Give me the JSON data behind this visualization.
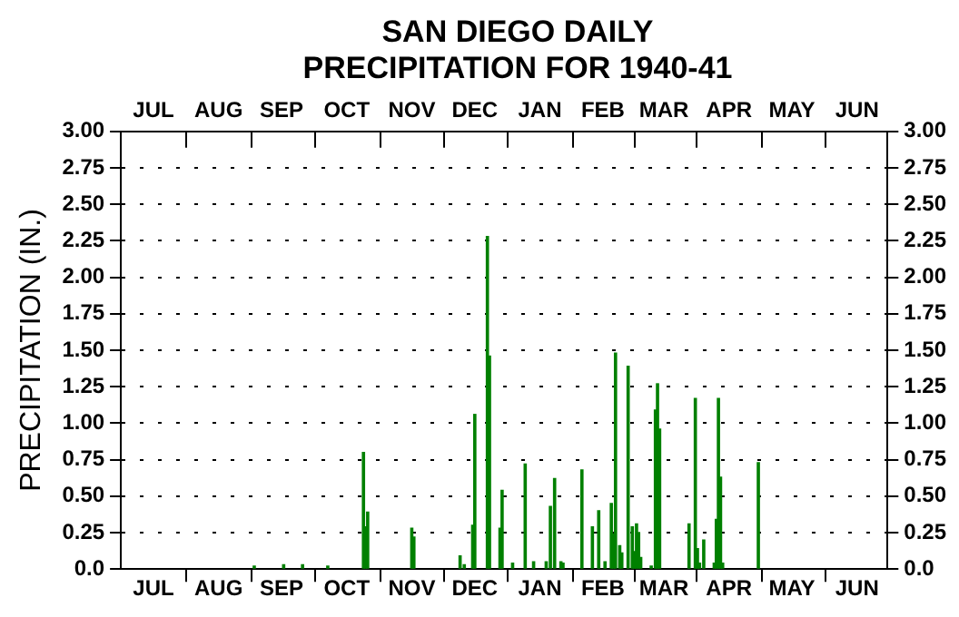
{
  "chart_data": {
    "type": "bar",
    "title": "SAN DIEGO DAILY PRECIPITATION FOR 1940-41",
    "ylabel": "PRECIPITATION (IN.)",
    "categories": [
      null,
      null,
      null,
      null,
      null,
      null,
      null,
      null,
      null,
      null,
      null,
      null,
      null,
      null,
      null,
      "JUL",
      null,
      null,
      null,
      null,
      null,
      null,
      null,
      null,
      null,
      null,
      null,
      null,
      null,
      null,
      null,
      null,
      null,
      null,
      null,
      null,
      null,
      null,
      null,
      null,
      null,
      null,
      null,
      null,
      null,
      null,
      "AUG",
      null,
      null,
      null,
      null,
      null,
      null,
      null,
      null,
      null,
      null,
      null,
      null,
      null,
      null,
      null,
      null,
      null,
      null,
      null,
      null,
      null,
      null,
      null,
      null,
      null,
      null,
      null,
      null,
      null,
      "SEP",
      null,
      null,
      null,
      null,
      null,
      null,
      null,
      null,
      null,
      null,
      null,
      null,
      null,
      null,
      null,
      null,
      null,
      null,
      null,
      null,
      null,
      null,
      null,
      null,
      null,
      null,
      null,
      null,
      null,
      null,
      "OCT",
      null,
      null,
      null,
      null,
      null,
      null,
      null,
      null,
      null,
      null,
      null,
      null,
      null,
      null,
      null,
      null,
      null,
      null,
      null,
      null,
      null,
      null,
      null,
      null,
      null,
      null,
      null,
      null,
      null,
      null,
      "NOV",
      null,
      null,
      null,
      null,
      null,
      null,
      null,
      null,
      null,
      null,
      null,
      null,
      null,
      null,
      null,
      null,
      null,
      null,
      null,
      null,
      null,
      null,
      null,
      null,
      null,
      null,
      null,
      null,
      null,
      "DEC",
      null,
      null,
      null,
      null,
      null,
      null,
      null,
      null,
      null,
      null,
      null,
      null,
      null,
      null,
      null,
      null,
      null,
      null,
      null,
      null,
      null,
      null,
      null,
      null,
      null,
      null,
      null,
      null,
      null,
      null,
      "JAN",
      null,
      null,
      null,
      null,
      null,
      null,
      null,
      null,
      null,
      null,
      null,
      null,
      null,
      null,
      null,
      null,
      null,
      null,
      null,
      null,
      null,
      null,
      null,
      null,
      null,
      null,
      null,
      null,
      null,
      "FEB",
      null,
      null,
      null,
      null,
      null,
      null,
      null,
      null,
      null,
      null,
      null,
      null,
      null,
      null,
      null,
      null,
      null,
      null,
      null,
      null,
      null,
      null,
      null,
      null,
      null,
      null,
      null,
      null,
      "MAR",
      null,
      null,
      null,
      null,
      null,
      null,
      null,
      null,
      null,
      null,
      null,
      null,
      null,
      null,
      null,
      null,
      null,
      null,
      null,
      null,
      null,
      null,
      null,
      null,
      null,
      null,
      null,
      null,
      null,
      null,
      "APR",
      null,
      null,
      null,
      null,
      null,
      null,
      null,
      null,
      null,
      null,
      null,
      null,
      null,
      null,
      null,
      null,
      null,
      null,
      null,
      null,
      null,
      null,
      null,
      null,
      null,
      null,
      null,
      null,
      null,
      "MAY",
      null,
      null,
      null,
      null,
      null,
      null,
      null,
      null,
      null,
      null,
      null,
      null,
      null,
      null,
      null,
      null,
      null,
      null,
      null,
      null,
      null,
      null,
      null,
      null,
      null,
      null,
      null,
      null,
      null,
      null,
      "JUN",
      null,
      null,
      null,
      null,
      null,
      null,
      null,
      null,
      null,
      null,
      null,
      null,
      null,
      null
    ],
    "values": [
      null,
      null,
      null,
      null,
      null,
      null,
      null,
      null,
      null,
      null,
      null,
      null,
      null,
      null,
      null,
      null,
      null,
      null,
      null,
      null,
      null,
      null,
      null,
      null,
      null,
      null,
      null,
      null,
      null,
      null,
      null,
      null,
      null,
      null,
      null,
      null,
      null,
      null,
      null,
      null,
      null,
      null,
      null,
      null,
      null,
      null,
      null,
      null,
      null,
      null,
      null,
      null,
      null,
      null,
      null,
      null,
      null,
      null,
      null,
      null,
      null,
      null,
      null,
      0.02,
      null,
      null,
      null,
      null,
      null,
      null,
      null,
      null,
      null,
      null,
      null,
      null,
      null,
      0.03,
      null,
      null,
      null,
      null,
      null,
      null,
      null,
      null,
      0.03,
      null,
      null,
      null,
      null,
      null,
      null,
      null,
      null,
      null,
      null,
      null,
      0.02,
      null,
      null,
      null,
      null,
      null,
      null,
      null,
      null,
      null,
      null,
      null,
      null,
      null,
      null,
      null,
      null,
      0.8,
      0.29,
      0.39,
      null,
      null,
      null,
      null,
      null,
      null,
      null,
      null,
      null,
      null,
      null,
      null,
      null,
      null,
      null,
      null,
      null,
      null,
      null,
      null,
      0.28,
      0.22,
      null,
      null,
      null,
      null,
      null,
      null,
      null,
      null,
      null,
      null,
      null,
      null,
      null,
      null,
      null,
      null,
      null,
      null,
      null,
      null,
      null,
      0.09,
      null,
      0.03,
      null,
      null,
      null,
      0.3,
      1.06,
      null,
      null,
      null,
      null,
      null,
      2.28,
      1.46,
      null,
      null,
      null,
      null,
      0.28,
      0.54,
      null,
      null,
      null,
      null,
      0.04,
      null,
      null,
      null,
      null,
      null,
      0.72,
      null,
      null,
      null,
      0.05,
      null,
      null,
      null,
      null,
      null,
      0.05,
      null,
      0.43,
      null,
      0.62,
      null,
      null,
      0.05,
      0.04,
      null,
      null,
      null,
      null,
      null,
      null,
      null,
      null,
      0.68,
      null,
      null,
      null,
      null,
      0.29,
      null,
      null,
      0.4,
      null,
      null,
      0.05,
      null,
      null,
      0.45,
      0.24,
      1.48,
      null,
      0.16,
      0.11,
      null,
      null,
      1.39,
      null,
      0.29,
      0.12,
      0.31,
      0.25,
      0.08,
      null,
      null,
      null,
      null,
      0.02,
      null,
      1.09,
      1.27,
      0.96,
      null,
      null,
      null,
      null,
      null,
      null,
      null,
      null,
      null,
      null,
      null,
      null,
      null,
      0.31,
      null,
      null,
      1.17,
      0.14,
      0.04,
      null,
      0.2,
      null,
      null,
      null,
      null,
      0.04,
      0.34,
      1.17,
      0.63,
      0.04,
      null,
      null,
      null,
      null,
      null,
      null,
      null,
      null,
      null,
      null,
      null,
      null,
      null,
      null,
      null,
      null,
      0.73,
      null,
      null,
      null,
      null,
      null,
      null,
      null,
      null,
      null,
      null,
      null,
      null,
      null,
      null,
      null,
      null,
      null,
      null,
      null,
      null,
      null,
      null,
      null,
      null,
      null,
      null,
      null,
      null,
      null,
      null,
      null,
      null,
      null,
      null,
      null,
      null,
      null,
      null,
      null,
      null,
      null,
      null,
      null,
      null,
      null,
      null,
      null,
      null,
      null,
      null,
      null,
      null,
      null,
      null,
      null,
      null,
      null,
      null,
      null,
      null,
      null
    ],
    "color": "#008000",
    "ylim": [
      0,
      3
    ],
    "yticks": [
      {
        "value": 0,
        "label": "0.0"
      },
      0.25,
      {
        "value": 0.5,
        "label": "0.50"
      },
      0.75,
      {
        "value": 1,
        "label": "1.00"
      },
      1.25,
      {
        "value": 1.5,
        "label": "1.50"
      },
      1.75,
      {
        "value": 2,
        "label": "2.00"
      },
      2.25,
      {
        "value": 2.5,
        "label": "2.50"
      },
      2.75,
      {
        "value": 3,
        "label": "3.00"
      }
    ],
    "y2lim": [
      0,
      3
    ],
    "y2ticks": [
      {
        "value": 0,
        "label": "0.0"
      },
      0.25,
      {
        "value": 0.5,
        "label": "0.50"
      },
      0.75,
      {
        "value": 1,
        "label": "1.00"
      },
      1.25,
      {
        "value": 1.5,
        "label": "1.50"
      },
      1.75,
      {
        "value": 2,
        "label": "2.00"
      },
      2.25,
      {
        "value": 2.5,
        "label": "2.50"
      },
      2.75,
      {
        "value": 3,
        "label": "3.00"
      }
    ],
    "grid": "y"
  }
}
